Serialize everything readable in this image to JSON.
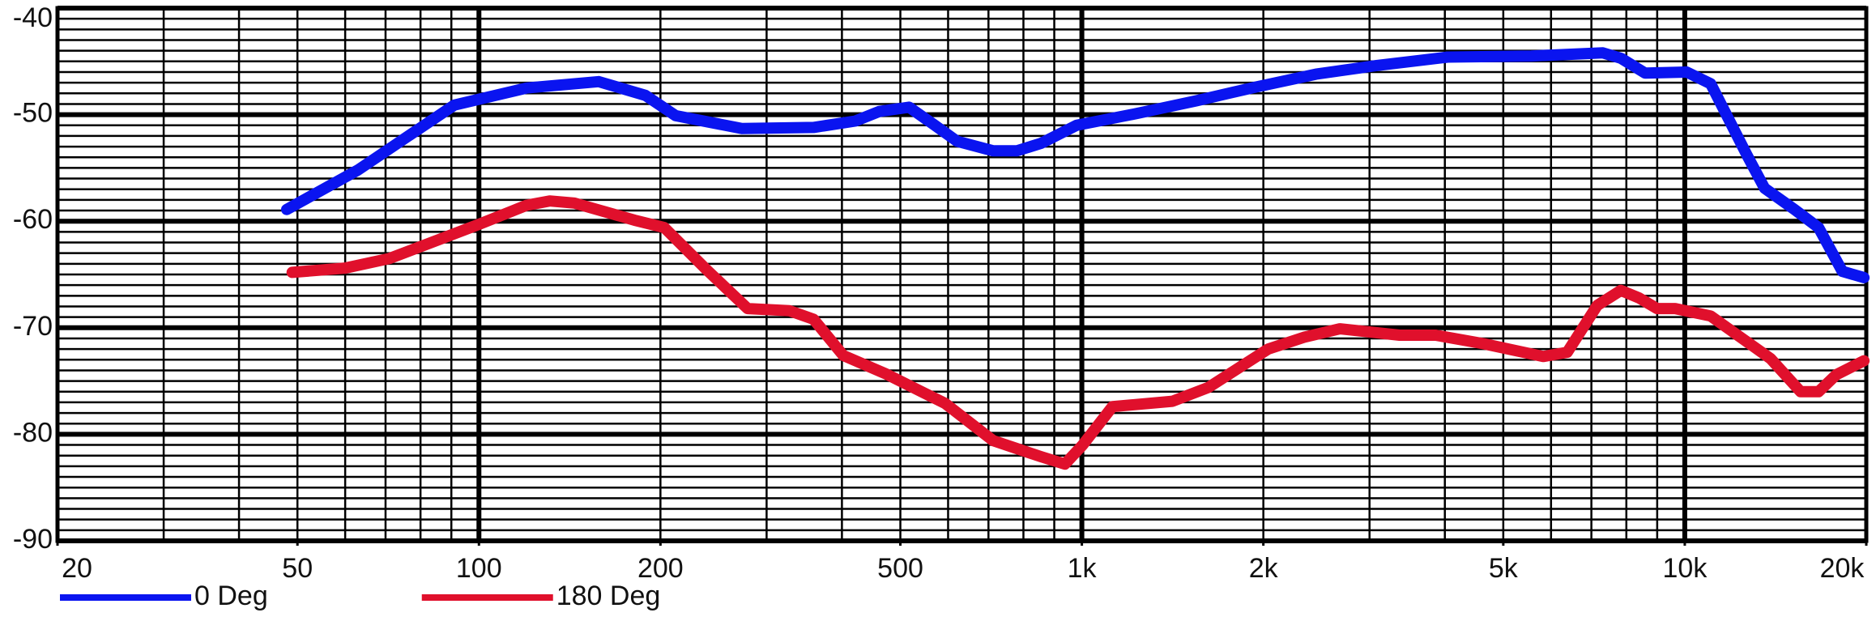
{
  "chart_data": {
    "type": "line",
    "xscale": "log",
    "grid": true,
    "legend": "bottom-left",
    "xlim": [
      20,
      20000
    ],
    "ylim": [
      -90,
      -40
    ],
    "xticks": [
      20,
      50,
      100,
      200,
      500,
      {
        "value": 1000,
        "label": "1k"
      },
      {
        "value": 2000,
        "label": "2k"
      },
      {
        "value": 5000,
        "label": "5k"
      },
      {
        "value": 10000,
        "label": "10k"
      },
      {
        "value": 20000,
        "label": "20k"
      }
    ],
    "yticks": [
      -90,
      -80,
      -70,
      -60,
      -50,
      -40
    ],
    "series": [
      {
        "name": "0 Deg",
        "color": "#0a14f0",
        "x": [
          48,
          63,
          91,
          120,
          158,
          189,
          212,
          273,
          359,
          421,
          461,
          517,
          567,
          621,
          713,
          780,
          855,
          980,
          1232,
          1548,
          1946,
          2445,
          3075,
          4045,
          5563,
          7314,
          7834,
          8594,
          10074,
          11041,
          12680,
          13560,
          15200,
          16670,
          18250,
          19820
        ],
        "values": [
          -58.9,
          -55.2,
          -49.1,
          -47.5,
          -46.9,
          -48.2,
          -50.1,
          -51.3,
          -51.2,
          -50.6,
          -49.7,
          -49.3,
          -50.9,
          -52.5,
          -53.4,
          -53.4,
          -52.7,
          -51.0,
          -49.9,
          -48.7,
          -47.4,
          -46.2,
          -45.4,
          -44.6,
          -44.5,
          -44.2,
          -44.7,
          -46.1,
          -46.0,
          -47.1,
          -53.8,
          -56.9,
          -58.9,
          -60.6,
          -64.7,
          -65.3
        ]
      },
      {
        "name": "180 Deg",
        "color": "#e0102c",
        "x": [
          49,
          60,
          71,
          100,
          120,
          131,
          144,
          181,
          203,
          238,
          279,
          327,
          359,
          402,
          472,
          542,
          593,
          713,
          855,
          937,
          1003,
          1124,
          1413,
          1622,
          2037,
          2335,
          2679,
          3366,
          3862,
          4636,
          5823,
          6382,
          7160,
          7834,
          8397,
          8995,
          9637,
          11041,
          13880,
          15560,
          16670,
          17840,
          19820
        ],
        "values": [
          -64.8,
          -64.4,
          -63.5,
          -60.3,
          -58.5,
          -58.1,
          -58.3,
          -59.9,
          -60.6,
          -64.5,
          -68.2,
          -68.4,
          -69.2,
          -72.6,
          -74.3,
          -76.0,
          -77.1,
          -80.6,
          -82.1,
          -82.8,
          -81.0,
          -77.4,
          -76.9,
          -75.6,
          -72.0,
          -70.9,
          -70.1,
          -70.7,
          -70.7,
          -71.5,
          -72.7,
          -72.3,
          -67.9,
          -66.5,
          -67.2,
          -68.2,
          -68.2,
          -68.9,
          -72.9,
          -76.0,
          -76.0,
          -74.4,
          -73.1
        ]
      }
    ]
  }
}
